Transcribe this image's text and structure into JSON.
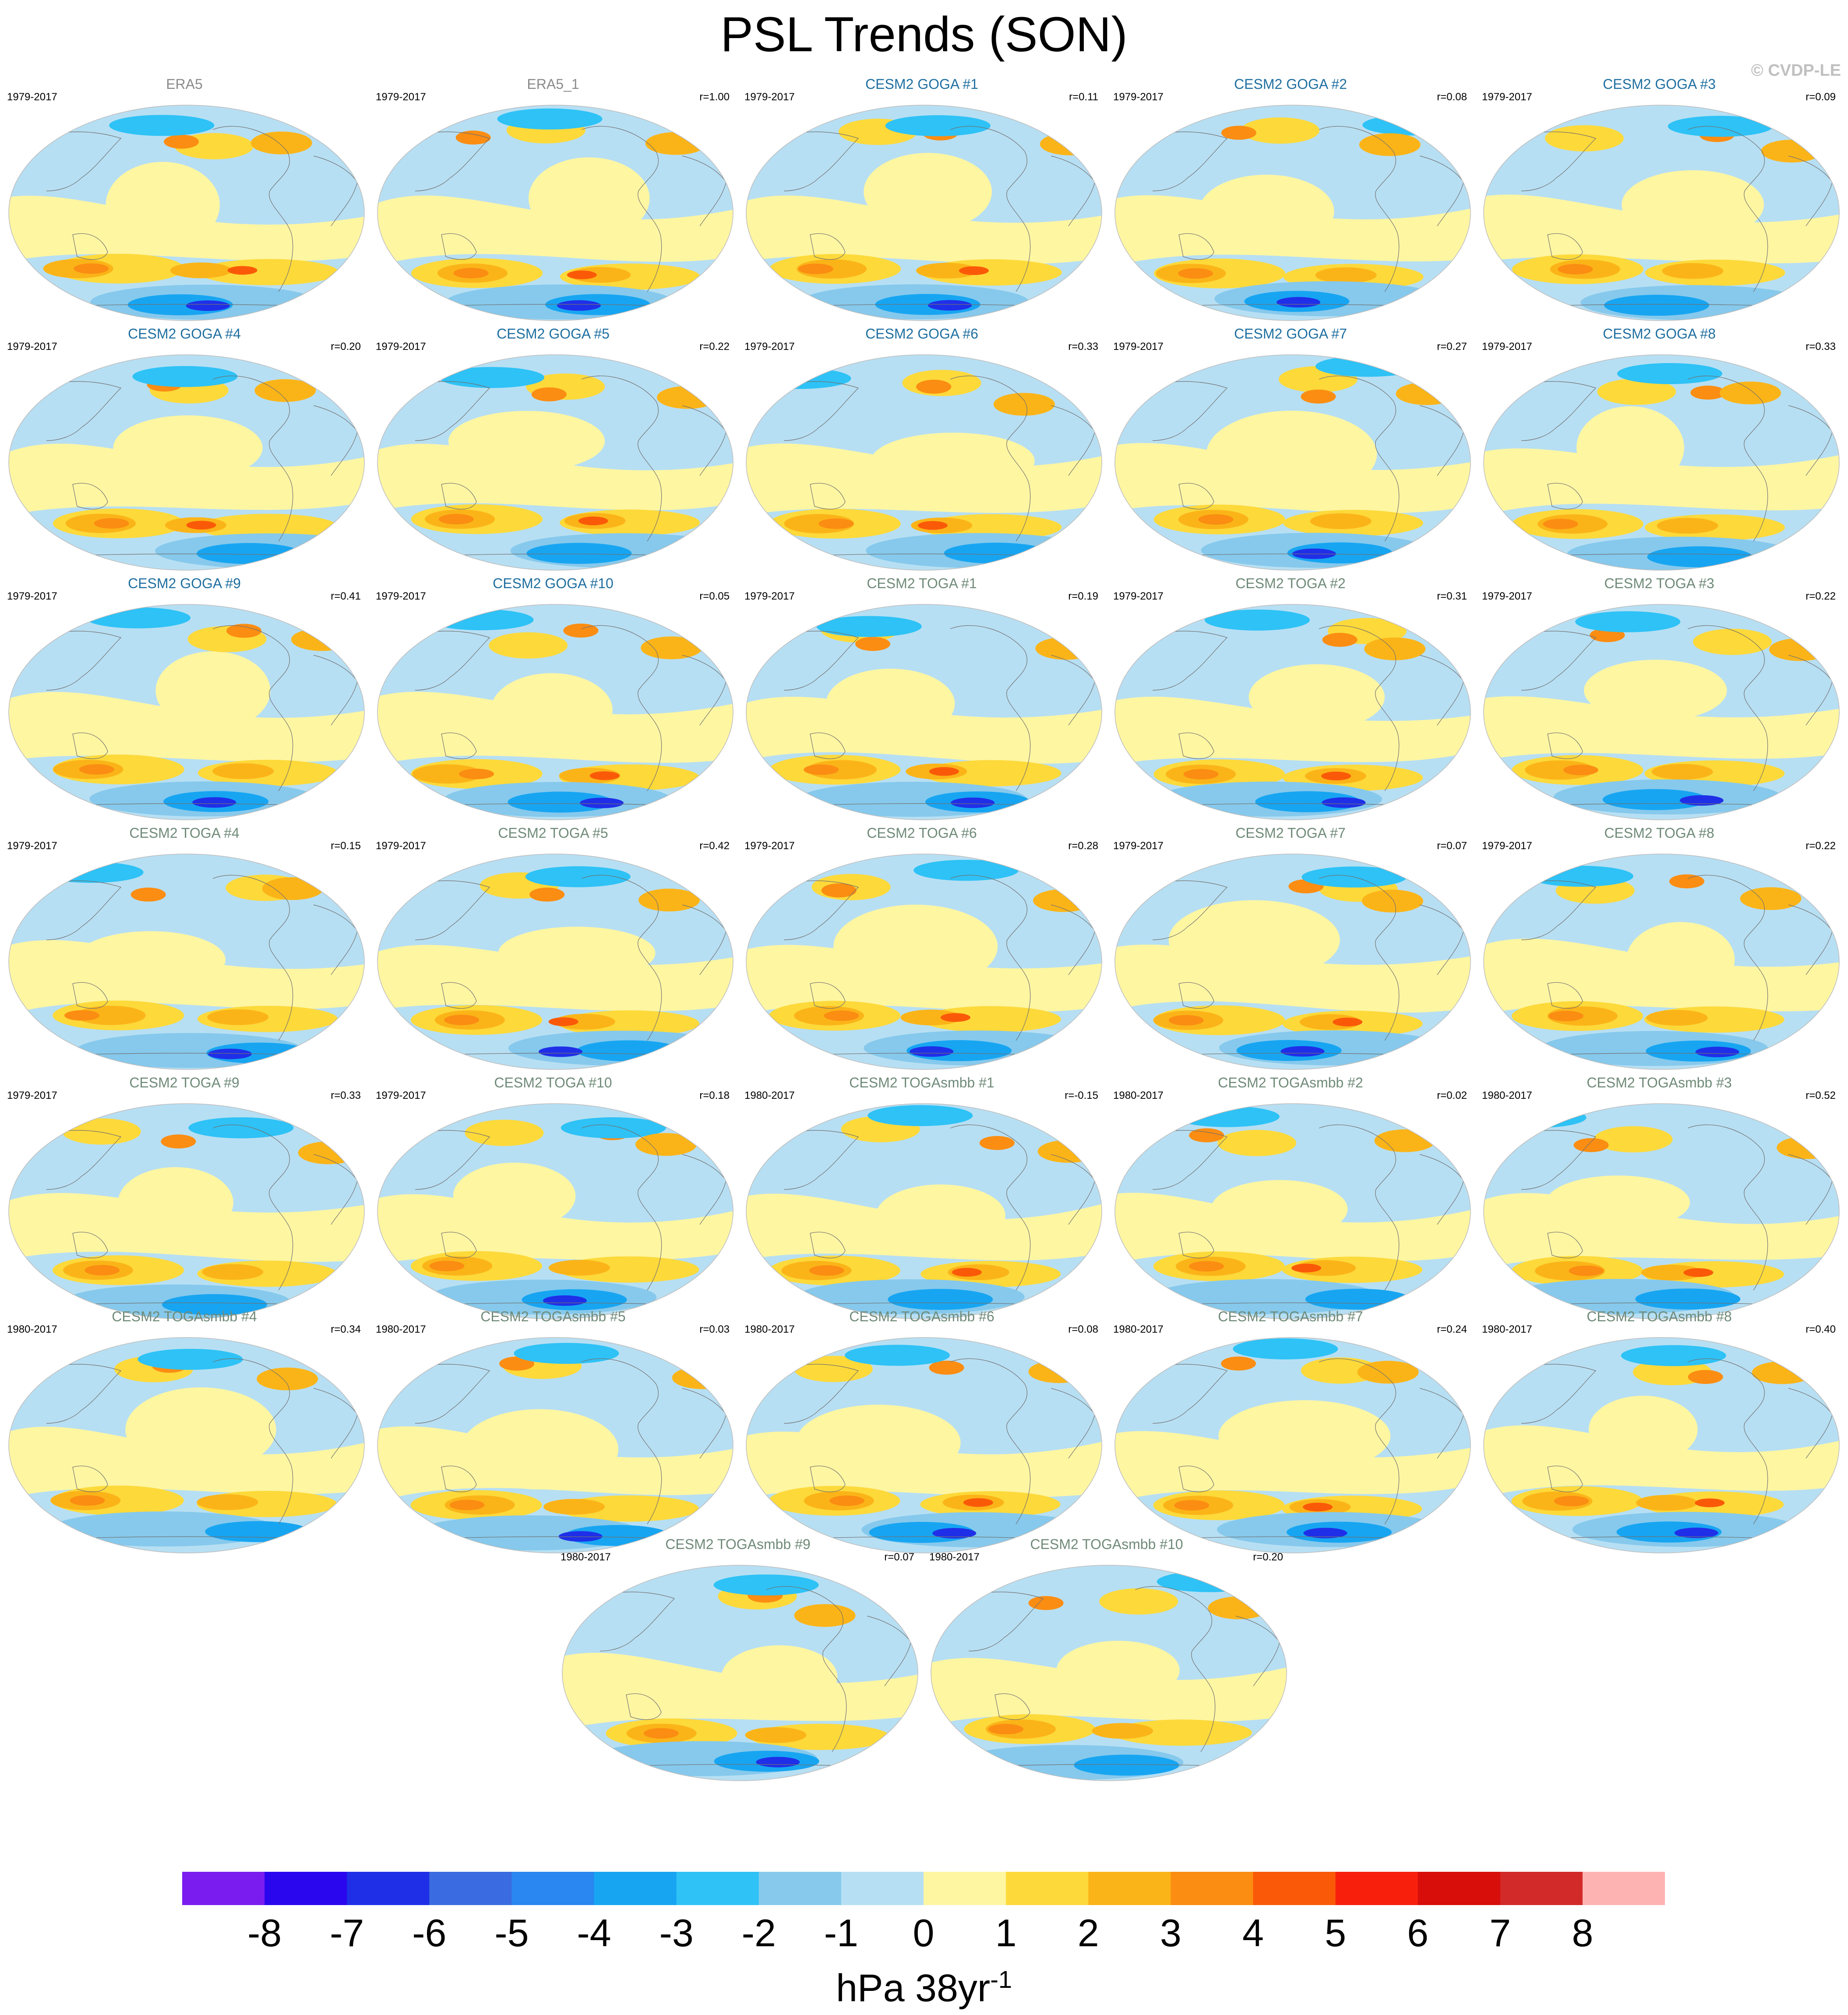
{
  "figure": {
    "title": "PSL Trends (SON)",
    "copyright": "© CVDP-LE"
  },
  "colors": {
    "title_obs": "#8a8a8a",
    "title_goga": "#1f6fa0",
    "title_other": "#6f8a78",
    "coast": "#707070",
    "levels": [
      "#7a1cf0",
      "#2a06ef",
      "#1f2fe8",
      "#3b6be0",
      "#2a86f0",
      "#17a5f2",
      "#2ec2f6",
      "#86c9ec",
      "#b7dff3",
      "#fff6a2",
      "#fdd93a",
      "#fbb418",
      "#fb8d12",
      "#fa5a08",
      "#f8200d",
      "#d70e0a",
      "#d22a28",
      "#feb3b3"
    ]
  },
  "chart_data": {
    "type": "map",
    "variable": "PSL",
    "season": "SON",
    "projection": "Robinson (Pacific-centered)",
    "colorbar": {
      "ticks": [
        "-8",
        "-7",
        "-6",
        "-5",
        "-4",
        "-3",
        "-2",
        "-1",
        "0",
        "1",
        "2",
        "3",
        "4",
        "5",
        "6",
        "7",
        "8"
      ],
      "units_main": "hPa 38yr",
      "units_sup": "-1"
    },
    "panels": [
      {
        "name": "ERA5",
        "period": "1979-2017",
        "r": "",
        "kind": "obs"
      },
      {
        "name": "ERA5_1",
        "period": "1979-2017",
        "r": "r=1.00",
        "kind": "obs"
      },
      {
        "name": "CESM2 GOGA #1",
        "period": "1979-2017",
        "r": "r=0.11",
        "kind": "goga"
      },
      {
        "name": "CESM2 GOGA #2",
        "period": "1979-2017",
        "r": "r=0.08",
        "kind": "goga"
      },
      {
        "name": "CESM2 GOGA #3",
        "period": "1979-2017",
        "r": "r=0.09",
        "kind": "goga"
      },
      {
        "name": "CESM2 GOGA #4",
        "period": "1979-2017",
        "r": "r=0.20",
        "kind": "goga"
      },
      {
        "name": "CESM2 GOGA #5",
        "period": "1979-2017",
        "r": "r=0.22",
        "kind": "goga"
      },
      {
        "name": "CESM2 GOGA #6",
        "period": "1979-2017",
        "r": "r=0.33",
        "kind": "goga"
      },
      {
        "name": "CESM2 GOGA #7",
        "period": "1979-2017",
        "r": "r=0.27",
        "kind": "goga"
      },
      {
        "name": "CESM2 GOGA #8",
        "period": "1979-2017",
        "r": "r=0.33",
        "kind": "goga"
      },
      {
        "name": "CESM2 GOGA #9",
        "period": "1979-2017",
        "r": "r=0.41",
        "kind": "goga"
      },
      {
        "name": "CESM2 GOGA #10",
        "period": "1979-2017",
        "r": "r=0.05",
        "kind": "goga"
      },
      {
        "name": "CESM2 TOGA #1",
        "period": "1979-2017",
        "r": "r=0.19",
        "kind": "other"
      },
      {
        "name": "CESM2 TOGA #2",
        "period": "1979-2017",
        "r": "r=0.31",
        "kind": "other"
      },
      {
        "name": "CESM2 TOGA #3",
        "period": "1979-2017",
        "r": "r=0.22",
        "kind": "other"
      },
      {
        "name": "CESM2 TOGA #4",
        "period": "1979-2017",
        "r": "r=0.15",
        "kind": "other"
      },
      {
        "name": "CESM2 TOGA #5",
        "period": "1979-2017",
        "r": "r=0.42",
        "kind": "other"
      },
      {
        "name": "CESM2 TOGA #6",
        "period": "1979-2017",
        "r": "r=0.28",
        "kind": "other"
      },
      {
        "name": "CESM2 TOGA #7",
        "period": "1979-2017",
        "r": "r=0.07",
        "kind": "other"
      },
      {
        "name": "CESM2 TOGA #8",
        "period": "1979-2017",
        "r": "r=0.22",
        "kind": "other"
      },
      {
        "name": "CESM2 TOGA #9",
        "period": "1979-2017",
        "r": "r=0.33",
        "kind": "other"
      },
      {
        "name": "CESM2 TOGA #10",
        "period": "1979-2017",
        "r": "r=0.18",
        "kind": "other"
      },
      {
        "name": "CESM2 TOGAsmbb #1",
        "period": "1980-2017",
        "r": "r=-0.15",
        "kind": "other"
      },
      {
        "name": "CESM2 TOGAsmbb #2",
        "period": "1980-2017",
        "r": "r=0.02",
        "kind": "other"
      },
      {
        "name": "CESM2 TOGAsmbb #3",
        "period": "1980-2017",
        "r": "r=0.52",
        "kind": "other"
      },
      {
        "name": "CESM2 TOGAsmbb #4",
        "period": "1980-2017",
        "r": "r=0.34",
        "kind": "other"
      },
      {
        "name": "CESM2 TOGAsmbb #5",
        "period": "1980-2017",
        "r": "r=0.03",
        "kind": "other"
      },
      {
        "name": "CESM2 TOGAsmbb #6",
        "period": "1980-2017",
        "r": "r=0.08",
        "kind": "other"
      },
      {
        "name": "CESM2 TOGAsmbb #7",
        "period": "1980-2017",
        "r": "r=0.24",
        "kind": "other"
      },
      {
        "name": "CESM2 TOGAsmbb #8",
        "period": "1980-2017",
        "r": "r=0.40",
        "kind": "other"
      },
      {
        "name": "CESM2 TOGAsmbb #9",
        "period": "1980-2017",
        "r": "r=0.07",
        "kind": "other"
      },
      {
        "name": "CESM2 TOGAsmbb #10",
        "period": "1980-2017",
        "r": "r=0.20",
        "kind": "other"
      }
    ]
  }
}
